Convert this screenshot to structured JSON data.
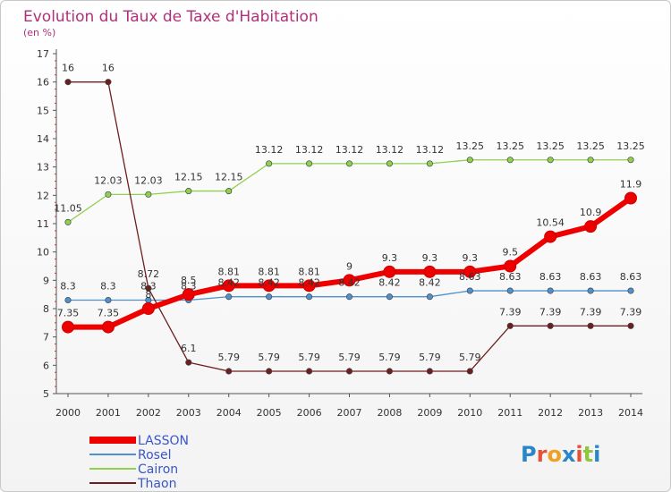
{
  "chart_data": {
    "type": "line",
    "title": "Evolution du Taux de Taxe d'Habitation",
    "subtitle": "(en %)",
    "x": [
      "2000",
      "2001",
      "2002",
      "2003",
      "2004",
      "2005",
      "2006",
      "2007",
      "2008",
      "2009",
      "2010",
      "2011",
      "2012",
      "2013",
      "2014"
    ],
    "ylim": [
      5,
      17
    ],
    "yticks": [
      5,
      6,
      7,
      8,
      9,
      10,
      11,
      12,
      13,
      14,
      15,
      16,
      17
    ],
    "grid": false,
    "legend_position": "bottom-left",
    "series": [
      {
        "name": "LASSON",
        "color": "#ee0000",
        "values": [
          7.35,
          7.35,
          8,
          8.5,
          8.81,
          8.81,
          8.81,
          9,
          9.3,
          9.3,
          9.3,
          9.5,
          10.54,
          10.9,
          11.9
        ],
        "labels": [
          "7.35",
          "7.35",
          "8",
          "8.5",
          "8.81",
          "8.81",
          "8.81",
          "9",
          "9.3",
          "9.3",
          "9.3",
          "9.5",
          "10.54",
          "10.9",
          "11.9"
        ]
      },
      {
        "name": "Rosel",
        "color": "#4f90cf",
        "values": [
          8.3,
          8.3,
          8.3,
          8.3,
          8.42,
          8.42,
          8.42,
          8.42,
          8.42,
          8.42,
          8.63,
          8.63,
          8.63,
          8.63,
          8.63
        ],
        "labels": [
          "8.3",
          "8.3",
          "8.3",
          "8.3",
          "8.42",
          "8.42",
          "8.42",
          "8.42",
          "8.42",
          "8.42",
          "8.63",
          "8.63",
          "8.63",
          "8.63",
          "8.63"
        ]
      },
      {
        "name": "Cairon",
        "color": "#8fd14f",
        "values": [
          11.05,
          12.03,
          12.03,
          12.15,
          12.15,
          13.12,
          13.12,
          13.12,
          13.12,
          13.12,
          13.25,
          13.25,
          13.25,
          13.25,
          13.25
        ],
        "labels": [
          "11.05",
          "12.03",
          "12.03",
          "12.15",
          "12.15",
          "13.12",
          "13.12",
          "13.12",
          "13.12",
          "13.12",
          "13.25",
          "13.25",
          "13.25",
          "13.25",
          "13.25"
        ]
      },
      {
        "name": "Thaon",
        "color": "#6e1e1e",
        "values": [
          16,
          16,
          8.72,
          6.1,
          5.79,
          5.79,
          5.79,
          5.79,
          5.79,
          5.79,
          5.79,
          7.39,
          7.39,
          7.39,
          7.39
        ],
        "labels": [
          "16",
          "16",
          "8.72",
          "6.1",
          "5.79",
          "5.79",
          "5.79",
          "5.79",
          "5.79",
          "5.79",
          "5.79",
          "7.39",
          "7.39",
          "7.39",
          "7.39"
        ]
      }
    ]
  },
  "logo": {
    "text": "Proxiti",
    "colors": [
      "#2b86c7",
      "#e5503b",
      "#f0a020",
      "#2b86c7",
      "#e5503b",
      "#8fc63f",
      "#2b86c7"
    ]
  }
}
